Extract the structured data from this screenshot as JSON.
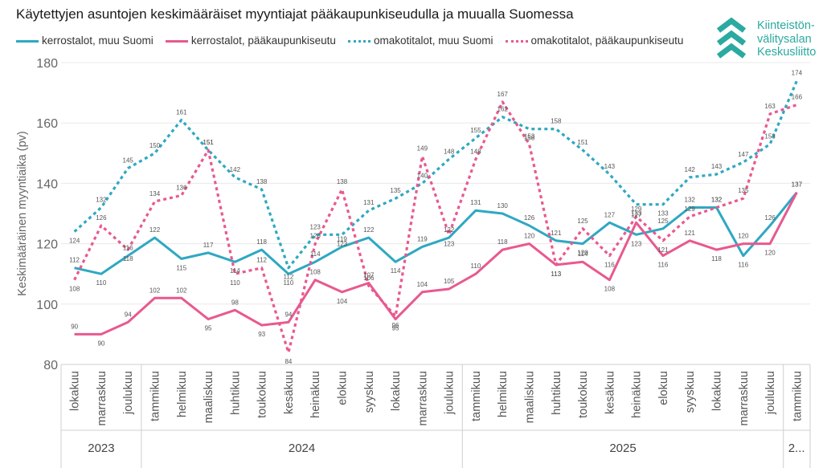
{
  "title": "Käytettyjen asuntojen keskimääräiset myyntiajat pääkaupunkiseudulla ja muualla Suomessa",
  "logo": {
    "lines": [
      "Kiinteistön-",
      "välitysalan",
      "Keskusliitto"
    ],
    "color": "#2aaaa0"
  },
  "chart_data": {
    "type": "line",
    "title": "Käytettyjen asuntojen keskimääräiset myyntiajat pääkaupunkiseudulla ja muualla Suomessa",
    "ylabel": "Keskimääräinen myyntiaika (pv)",
    "xlabel": "",
    "ylim": [
      80,
      180
    ],
    "yticks": [
      80,
      100,
      120,
      140,
      160,
      180
    ],
    "grid": true,
    "legend_position": "top-left",
    "categories": [
      "lokakuu",
      "marraskuu",
      "joulukuu",
      "tammikuu",
      "helmikuu",
      "maaliskuu",
      "huhtikuu",
      "toukokuu",
      "kesäkuu",
      "heinäkuu",
      "elokuu",
      "syyskuu",
      "lokakuu",
      "marraskuu",
      "joulukuu",
      "tammikuu",
      "helmikuu",
      "maaliskuu",
      "huhtikuu",
      "toukokuu",
      "kesäkuu",
      "heinäkuu",
      "elokuu",
      "syyskuu",
      "lokakuu",
      "marraskuu",
      "joulukuu",
      "tammikuu"
    ],
    "year_groups": [
      {
        "label": "2023",
        "span": 3
      },
      {
        "label": "2024",
        "span": 12
      },
      {
        "label": "2025",
        "span": 12
      },
      {
        "label": "2...",
        "span": 1
      }
    ],
    "series": [
      {
        "name": "kerrostalot, muu Suomi",
        "color": "#2fa8c2",
        "style": "solid",
        "values": [
          112,
          110,
          116,
          122,
          115,
          117,
          114,
          118,
          110,
          114,
          119,
          122,
          114,
          119,
          122,
          131,
          130,
          126,
          121,
          120,
          127,
          123,
          125,
          132,
          132,
          116,
          126,
          137
        ]
      },
      {
        "name": "kerrostalot, pääkaupunkiseutu",
        "color": "#e8598f",
        "style": "solid",
        "values": [
          90,
          90,
          94,
          102,
          102,
          95,
          98,
          93,
          94,
          108,
          104,
          107,
          95,
          104,
          105,
          110,
          118,
          120,
          113,
          114,
          108,
          127,
          116,
          121,
          118,
          120,
          120,
          137
        ]
      },
      {
        "name": "omakotitalot, muu Suomi",
        "color": "#2fa8c2",
        "style": "dotted",
        "values": [
          124,
          132,
          145,
          150,
          161,
          151,
          142,
          138,
          112,
          123,
          123,
          131,
          135,
          140,
          148,
          155,
          162,
          158,
          158,
          151,
          143,
          133,
          133,
          142,
          143,
          147,
          153,
          174
        ]
      },
      {
        "name": "omakotitalot, pääkaupunkiseutu",
        "color": "#e8598f",
        "style": "dotted",
        "values": [
          108,
          126,
          118,
          134,
          136,
          151,
          110,
          112,
          84,
          120,
          138,
          106,
          96,
          149,
          123,
          148,
          167,
          153,
          113,
          125,
          116,
          129,
          121,
          129,
          132,
          135,
          163,
          166
        ]
      }
    ]
  }
}
